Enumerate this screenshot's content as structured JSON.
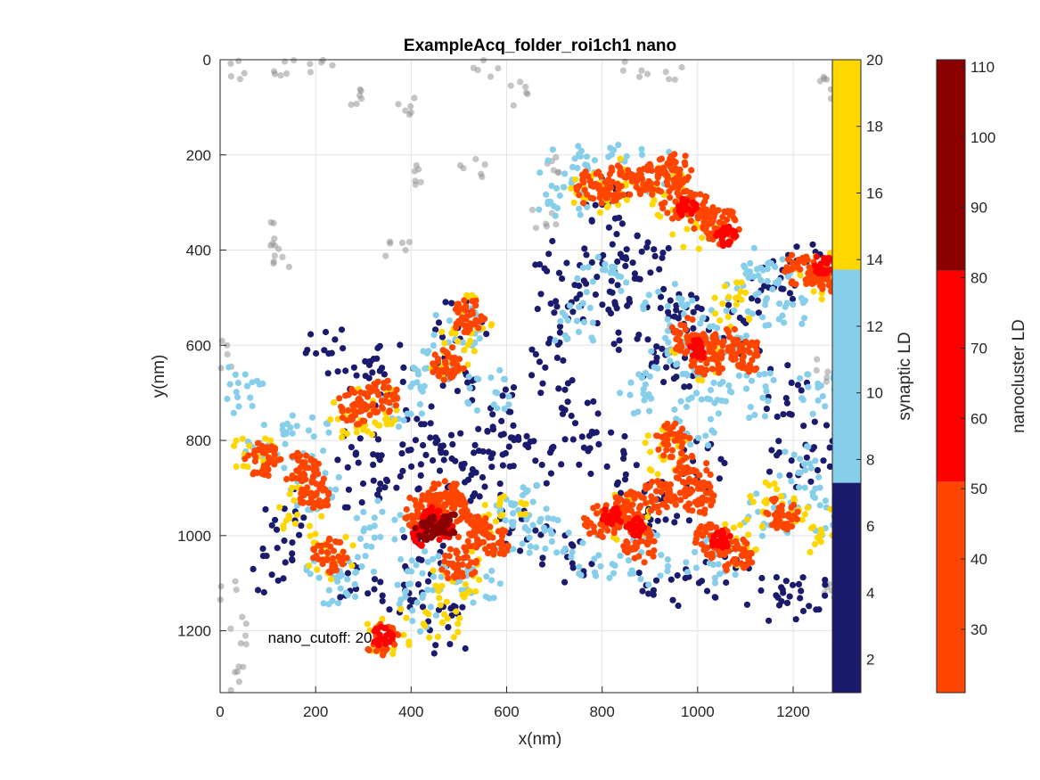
{
  "chart_data": {
    "type": "scatter",
    "title": "ExampleAcq_folder_roi1ch1 nano",
    "xlabel": "x(nm)",
    "ylabel": "y(nm)",
    "xlim": [
      0,
      1340
    ],
    "ylim": [
      0,
      1330
    ],
    "y_reversed": true,
    "grid": true,
    "x_ticks": [
      "0",
      "200",
      "400",
      "600",
      "800",
      "1000",
      "1200"
    ],
    "y_ticks": [
      "0",
      "200",
      "400",
      "600",
      "800",
      "1000",
      "1200"
    ],
    "annotation": {
      "text": "nano_cutoff: 20",
      "x": 100,
      "y": 1225
    },
    "colors": {
      "background": "#8c8c8c",
      "synaptic_low": "#1b1b6e",
      "synaptic_mid": "#87ceeb",
      "synaptic_high": "#ffd700",
      "nano_low": "#ff4500",
      "nano_mid": "#ff0000",
      "nano_high": "#8b0000"
    },
    "colorbars": [
      {
        "label": "synaptic LD",
        "range": [
          1,
          20
        ],
        "ticks": [
          "2",
          "4",
          "6",
          "8",
          "10",
          "12",
          "14",
          "16",
          "18",
          "20"
        ],
        "tick_values": [
          2,
          4,
          6,
          8,
          10,
          12,
          14,
          16,
          18,
          20
        ],
        "segments": [
          {
            "from": 1,
            "to": 7.3,
            "color": "#1b1b6e"
          },
          {
            "from": 7.3,
            "to": 13.7,
            "color": "#87ceeb"
          },
          {
            "from": 13.7,
            "to": 20,
            "color": "#ffd700"
          }
        ]
      },
      {
        "label": "nanocluster LD",
        "range": [
          21,
          111
        ],
        "ticks": [
          "30",
          "40",
          "50",
          "60",
          "70",
          "80",
          "90",
          "100",
          "110"
        ],
        "tick_values": [
          30,
          40,
          50,
          60,
          70,
          80,
          90,
          100,
          110
        ],
        "segments": [
          {
            "from": 21,
            "to": 51,
            "color": "#ff4500"
          },
          {
            "from": 51,
            "to": 81,
            "color": "#ff0000"
          },
          {
            "from": 81,
            "to": 111,
            "color": "#8b0000"
          }
        ]
      }
    ],
    "clusters": [
      {
        "name": "background",
        "color": "#8c8c8c",
        "opacity": 0.5,
        "spread": "gray",
        "centers": [
          [
            10,
            10
          ],
          [
            35,
            15
          ],
          [
            130,
            15
          ],
          [
            215,
            15
          ],
          [
            300,
            80
          ],
          [
            400,
            100
          ],
          [
            560,
            15
          ],
          [
            620,
            70
          ],
          [
            870,
            15
          ],
          [
            950,
            15
          ],
          [
            1280,
            60
          ],
          [
            420,
            240
          ],
          [
            530,
            225
          ],
          [
            700,
            230
          ],
          [
            680,
            330
          ],
          [
            115,
            365
          ],
          [
            130,
            420
          ],
          [
            370,
            395
          ],
          [
            10,
            620
          ],
          [
            10,
            1110
          ],
          [
            50,
            1200
          ],
          [
            35,
            1300
          ],
          [
            1270,
            650
          ],
          [
            1290,
            1120
          ]
        ]
      },
      {
        "name": "synaptic-low",
        "color": "#1b1b6e",
        "opacity": 1,
        "spread": "dense",
        "centers": [
          [
            500,
            560
          ],
          [
            480,
            680
          ],
          [
            430,
            780
          ],
          [
            520,
            820
          ],
          [
            560,
            880
          ],
          [
            380,
            860
          ],
          [
            470,
            860
          ],
          [
            620,
            800
          ],
          [
            690,
            650
          ],
          [
            700,
            540
          ],
          [
            720,
            430
          ],
          [
            780,
            520
          ],
          [
            820,
            480
          ],
          [
            900,
            430
          ],
          [
            950,
            530
          ],
          [
            990,
            540
          ],
          [
            880,
            600
          ],
          [
            1160,
            480
          ],
          [
            1220,
            420
          ],
          [
            1180,
            700
          ],
          [
            1200,
            850
          ],
          [
            1270,
            800
          ],
          [
            930,
            980
          ],
          [
            880,
            900
          ],
          [
            800,
            820
          ],
          [
            760,
            760
          ],
          [
            660,
            840
          ],
          [
            640,
            980
          ],
          [
            1050,
            1080
          ],
          [
            930,
            1100
          ],
          [
            1150,
            1120
          ],
          [
            1220,
            1120
          ],
          [
            230,
            620
          ],
          [
            300,
            690
          ],
          [
            280,
            820
          ],
          [
            150,
            960
          ],
          [
            100,
            1060
          ],
          [
            300,
            1100
          ],
          [
            400,
            1150
          ],
          [
            480,
            1200
          ],
          [
            300,
            900
          ],
          [
            350,
            650
          ],
          [
            600,
            740
          ],
          [
            840,
            380
          ],
          [
            800,
            290
          ],
          [
            940,
            650
          ],
          [
            1100,
            560
          ],
          [
            1000,
            860
          ],
          [
            730,
            1040
          ],
          [
            420,
            1050
          ]
        ]
      },
      {
        "name": "synaptic-mid",
        "color": "#87ceeb",
        "opacity": 1,
        "spread": "ring",
        "centers": [
          [
            40,
            690
          ],
          [
            100,
            820
          ],
          [
            200,
            900
          ],
          [
            180,
            790
          ],
          [
            380,
            720
          ],
          [
            440,
            650
          ],
          [
            500,
            560
          ],
          [
            560,
            700
          ],
          [
            640,
            940
          ],
          [
            680,
            1000
          ],
          [
            790,
            1050
          ],
          [
            900,
            1050
          ],
          [
            1030,
            1060
          ],
          [
            1150,
            960
          ],
          [
            1240,
            950
          ],
          [
            1220,
            860
          ],
          [
            1250,
            700
          ],
          [
            1180,
            520
          ],
          [
            1110,
            480
          ],
          [
            1060,
            560
          ],
          [
            940,
            520
          ],
          [
            800,
            460
          ],
          [
            740,
            560
          ],
          [
            720,
            300
          ],
          [
            800,
            220
          ],
          [
            900,
            230
          ],
          [
            600,
            980
          ],
          [
            540,
            1090
          ],
          [
            420,
            1080
          ],
          [
            230,
            1090
          ],
          [
            420,
            1150
          ],
          [
            1030,
            680
          ],
          [
            1150,
            430
          ],
          [
            1000,
            760
          ],
          [
            950,
            620
          ],
          [
            290,
            1080
          ],
          [
            330,
            980
          ],
          [
            720,
            220
          ],
          [
            880,
            690
          ],
          [
            1120,
            700
          ]
        ]
      },
      {
        "name": "synaptic-high",
        "color": "#ffd700",
        "opacity": 1,
        "spread": "ring",
        "centers": [
          [
            330,
            720
          ],
          [
            280,
            750
          ],
          [
            170,
            950
          ],
          [
            230,
            1040
          ],
          [
            850,
            960
          ],
          [
            930,
            820
          ],
          [
            1090,
            1010
          ],
          [
            1160,
            940
          ],
          [
            820,
            260
          ],
          [
            930,
            280
          ],
          [
            1000,
            620
          ],
          [
            1070,
            510
          ],
          [
            1260,
            450
          ],
          [
            600,
            960
          ],
          [
            500,
            1080
          ],
          [
            460,
            1170
          ],
          [
            350,
            1200
          ],
          [
            480,
            620
          ],
          [
            520,
            540
          ],
          [
            780,
            270
          ],
          [
            1240,
            980
          ],
          [
            990,
            350
          ],
          [
            70,
            840
          ]
        ]
      },
      {
        "name": "nano-low",
        "color": "#ff4500",
        "opacity": 1,
        "spread": "blob",
        "centers": [
          [
            340,
            710
          ],
          [
            280,
            730
          ],
          [
            90,
            840
          ],
          [
            170,
            860
          ],
          [
            200,
            910
          ],
          [
            230,
            1040
          ],
          [
            420,
            950
          ],
          [
            470,
            920
          ],
          [
            530,
            990
          ],
          [
            570,
            1010
          ],
          [
            500,
            1060
          ],
          [
            480,
            940
          ],
          [
            860,
            940
          ],
          [
            800,
            970
          ],
          [
            920,
            920
          ],
          [
            990,
            870
          ],
          [
            1000,
            920
          ],
          [
            950,
            800
          ],
          [
            1020,
            630
          ],
          [
            980,
            580
          ],
          [
            1060,
            600
          ],
          [
            1100,
            620
          ],
          [
            830,
            260
          ],
          [
            900,
            250
          ],
          [
            960,
            300
          ],
          [
            1000,
            320
          ],
          [
            950,
            230
          ],
          [
            1050,
            350
          ],
          [
            1220,
            440
          ],
          [
            1280,
            450
          ],
          [
            1030,
            1010
          ],
          [
            1080,
            1040
          ],
          [
            1180,
            950
          ],
          [
            340,
            1220
          ],
          [
            780,
            270
          ],
          [
            480,
            640
          ],
          [
            520,
            540
          ],
          [
            880,
            1020
          ]
        ]
      },
      {
        "name": "nano-mid",
        "color": "#ff0000",
        "opacity": 1,
        "spread": "core",
        "centers": [
          [
            440,
            960
          ],
          [
            470,
            990
          ],
          [
            820,
            960
          ],
          [
            870,
            980
          ],
          [
            1000,
            610
          ],
          [
            1060,
            370
          ],
          [
            1260,
            430
          ],
          [
            1050,
            1010
          ],
          [
            980,
            310
          ],
          [
            420,
            1000
          ],
          [
            340,
            1210
          ]
        ]
      },
      {
        "name": "nano-high",
        "color": "#8b0000",
        "opacity": 1,
        "spread": "core",
        "centers": [
          [
            450,
            980
          ],
          [
            430,
            990
          ],
          [
            480,
            975
          ]
        ]
      }
    ]
  }
}
